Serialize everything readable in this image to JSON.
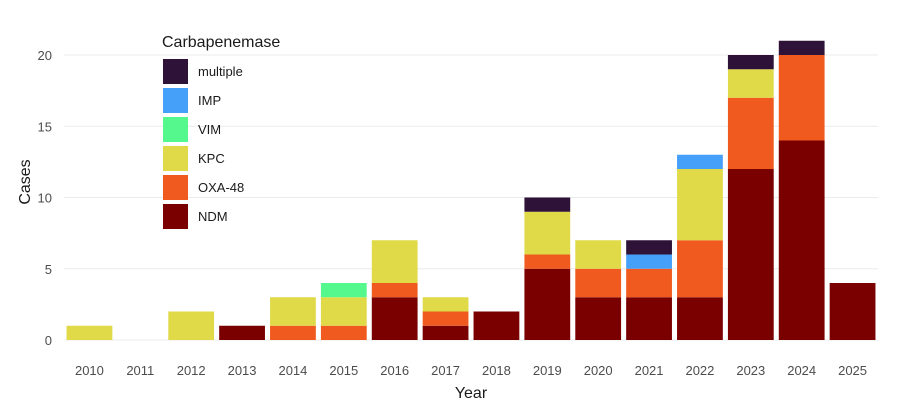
{
  "chart_data": {
    "type": "bar",
    "stacked": true,
    "xlabel": "Year",
    "ylabel": "Cases",
    "ylim": [
      0,
      21
    ],
    "yticks": [
      0,
      5,
      10,
      15,
      20
    ],
    "grid": true,
    "categories": [
      "2010",
      "2011",
      "2012",
      "2013",
      "2014",
      "2015",
      "2016",
      "2017",
      "2018",
      "2019",
      "2020",
      "2021",
      "2022",
      "2023",
      "2024",
      "2025"
    ],
    "legend": {
      "title": "Carbapenemase",
      "placement": "top-left"
    },
    "series": [
      {
        "name": "NDM",
        "color": "#7a0000",
        "values": [
          0,
          0,
          0,
          1,
          0,
          0,
          3,
          1,
          2,
          5,
          3,
          3,
          3,
          12,
          14,
          4
        ]
      },
      {
        "name": "OXA-48",
        "color": "#f05a1e",
        "values": [
          0,
          0,
          0,
          0,
          1,
          1,
          1,
          1,
          0,
          1,
          2,
          2,
          4,
          5,
          6,
          0
        ]
      },
      {
        "name": "KPC",
        "color": "#e0da48",
        "values": [
          1,
          0,
          2,
          0,
          2,
          2,
          3,
          1,
          0,
          3,
          2,
          0,
          5,
          2,
          0,
          0
        ]
      },
      {
        "name": "VIM",
        "color": "#55f88c",
        "values": [
          0,
          0,
          0,
          0,
          0,
          1,
          0,
          0,
          0,
          0,
          0,
          0,
          0,
          0,
          0,
          0
        ]
      },
      {
        "name": "IMP",
        "color": "#45a0fa",
        "values": [
          0,
          0,
          0,
          0,
          0,
          0,
          0,
          0,
          0,
          0,
          0,
          1,
          1,
          0,
          0,
          0
        ]
      },
      {
        "name": "multiple",
        "color": "#2e1238",
        "values": [
          0,
          0,
          0,
          0,
          0,
          0,
          0,
          0,
          0,
          1,
          0,
          1,
          0,
          1,
          1,
          0
        ]
      }
    ]
  }
}
